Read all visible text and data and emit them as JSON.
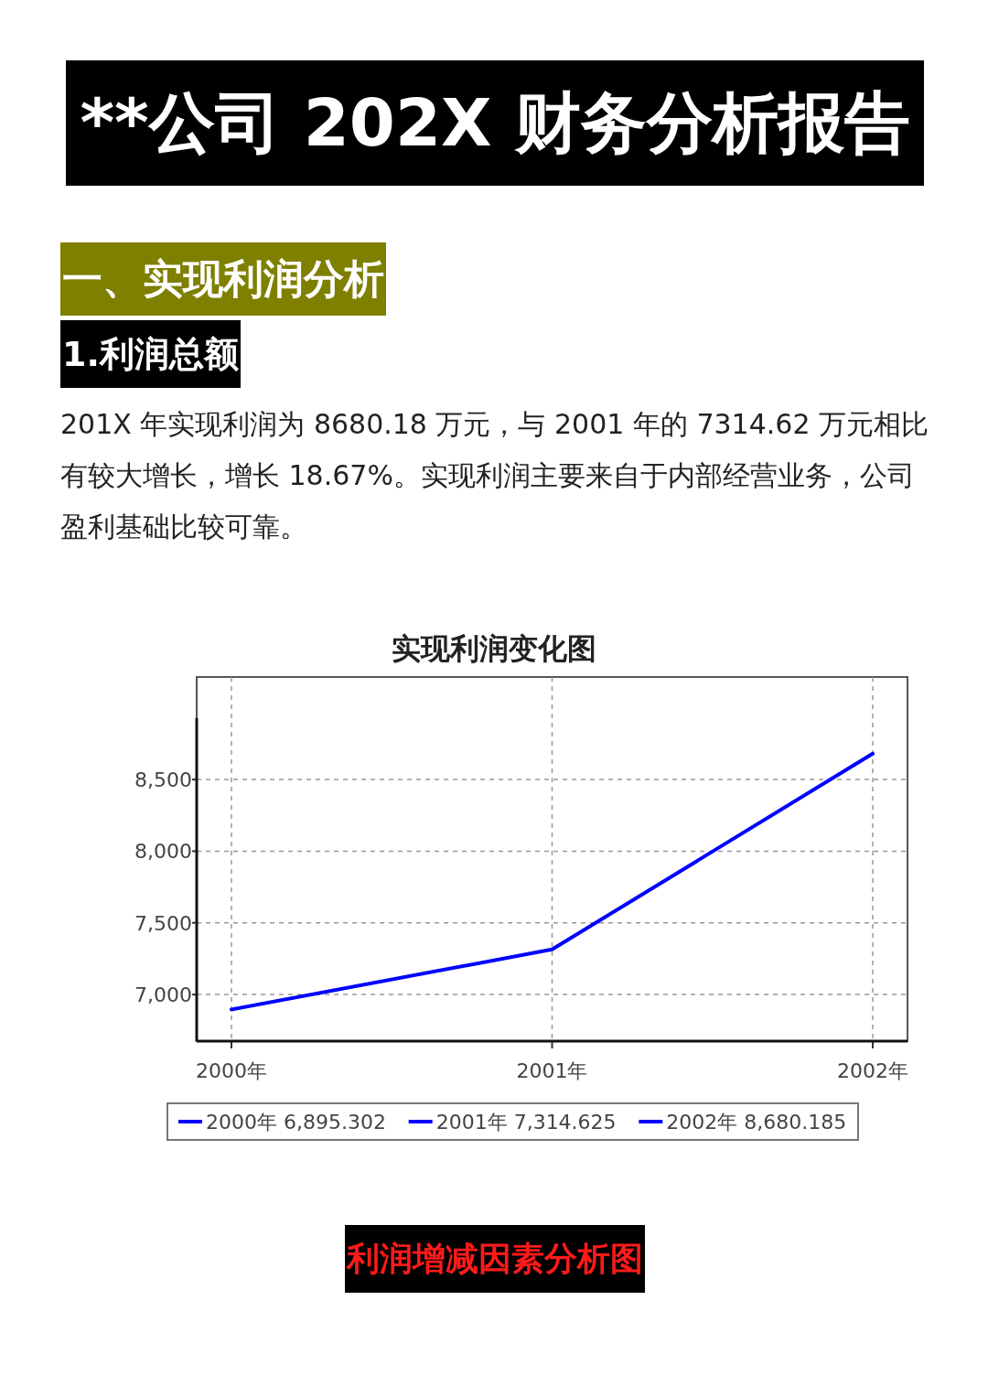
{
  "chart_data": {
    "type": "line",
    "title": "实现利润变化图",
    "annotations": [
      "**公司 202X 财务分析报告",
      "一、实现利润分析",
      "1.利润总额",
      "201X 年实现利润为 8680.18 万元，与 2001 年的 7314.62 万元相比有较大增长，增长 18.67%。实现利润主要来自于内部经营业务，公司盈利基础比较可靠。",
      "利润增减因素分析图"
    ],
    "categories": [
      "2000年",
      "2001年",
      "2002年"
    ],
    "series": [
      {
        "color": "#0000ff",
        "values": [
          6895.302,
          7314.625,
          8680.185
        ],
        "value_labels": [
          "2000年 6,895.302",
          "2001年 7,314.625",
          "2002年 8,680.185"
        ]
      }
    ],
    "ylim": [
      6675,
      9215
    ],
    "yticks": [
      {
        "value": 7000,
        "label": "7,000"
      },
      {
        "value": 7500,
        "label": "7,500"
      },
      {
        "value": 8000,
        "label": "8,000"
      },
      {
        "value": 8500,
        "label": "8,500"
      }
    ],
    "grid": true
  }
}
